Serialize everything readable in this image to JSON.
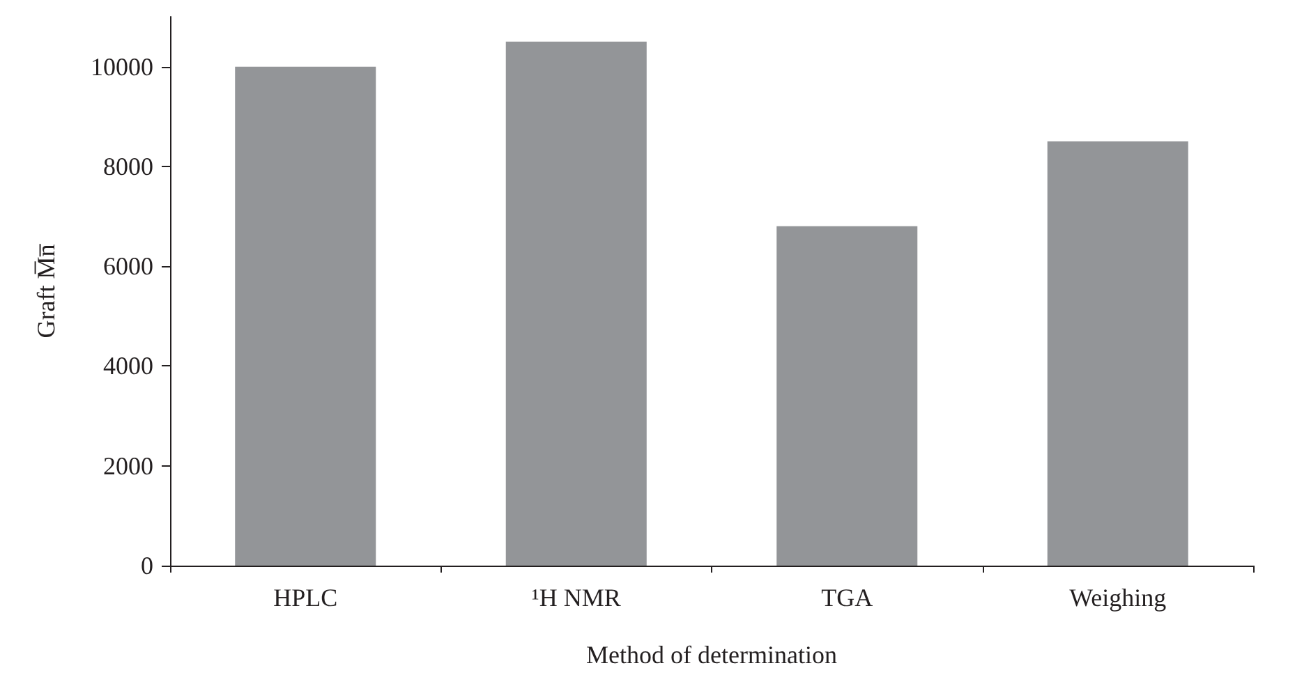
{
  "chart_data": {
    "type": "bar",
    "xlabel": "Method of determination",
    "ylabel": "Graft M̅n̅",
    "categories": [
      "HPLC",
      "¹H NMR",
      "TGA",
      "Weighing"
    ],
    "values": [
      10000,
      10500,
      6800,
      8500
    ],
    "color": "#939598",
    "ylim": [
      0,
      11000
    ],
    "yticks": [
      0,
      2000,
      4000,
      6000,
      8000,
      10000
    ],
    "grid": false
  }
}
